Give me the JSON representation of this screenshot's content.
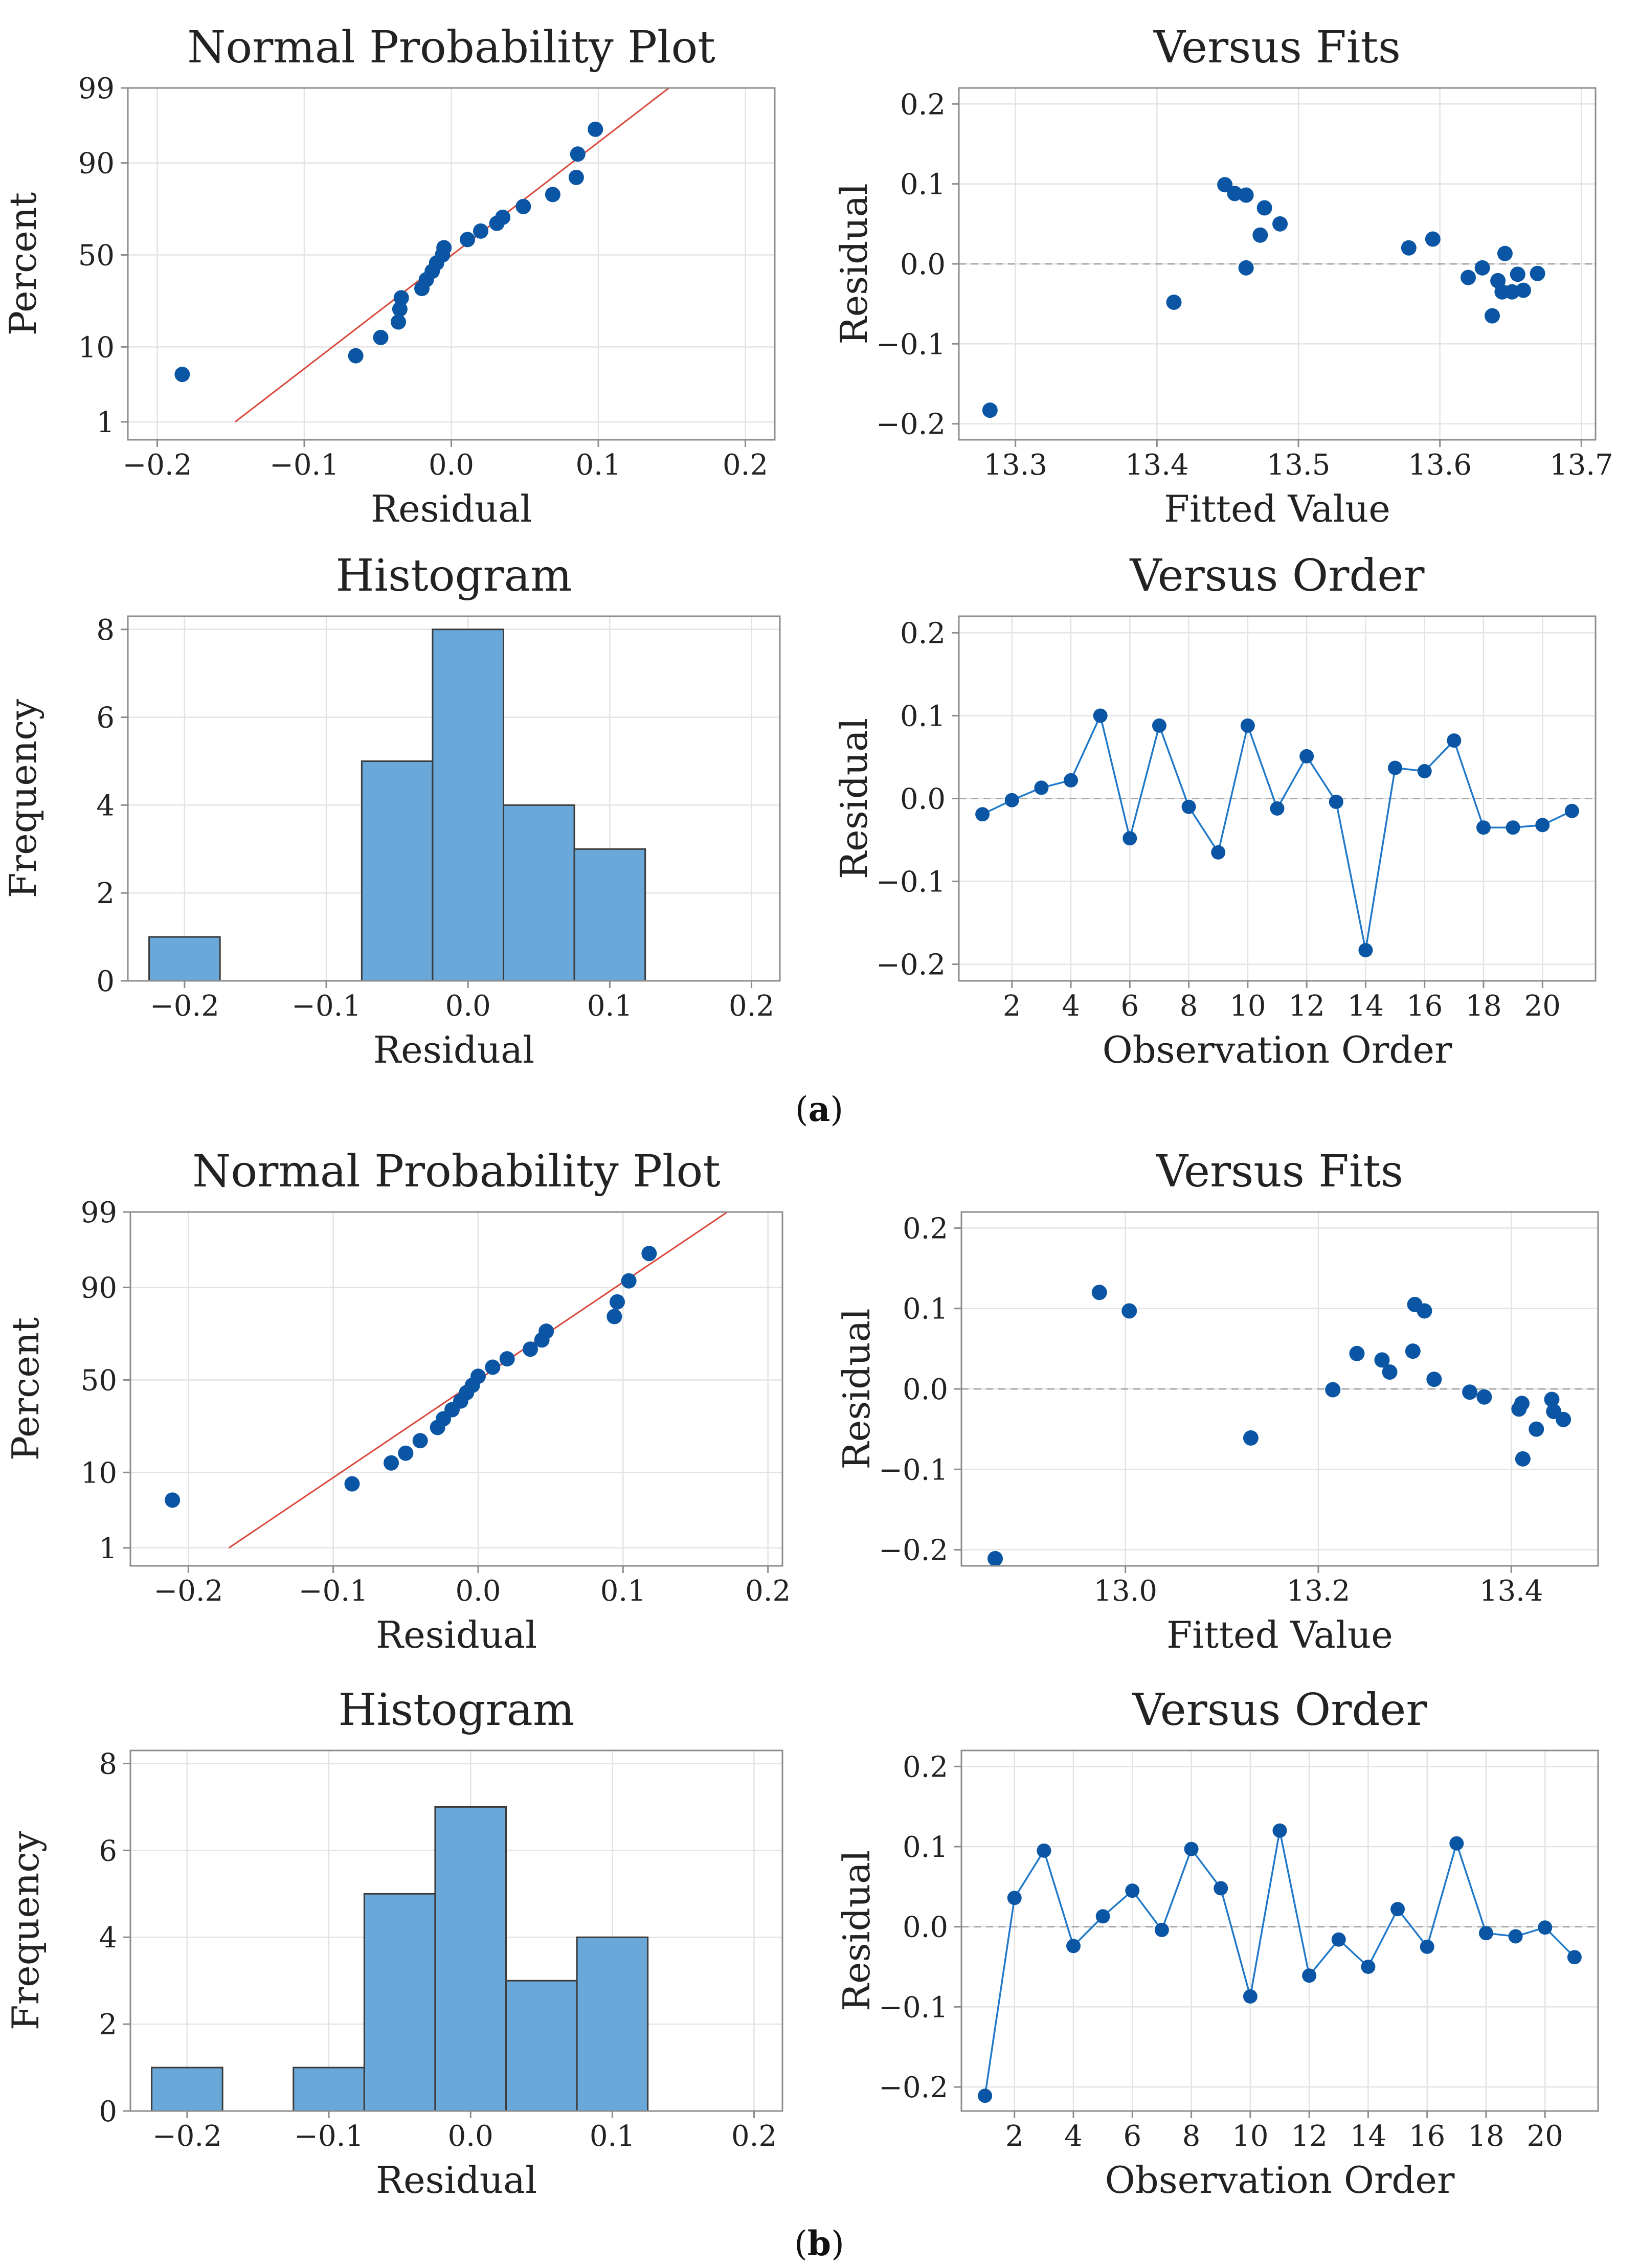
{
  "figure": {
    "captions": [
      {
        "open": "(",
        "letter": "a",
        "close": ")"
      },
      {
        "open": "(",
        "letter": "b",
        "close": ")"
      }
    ]
  },
  "colors": {
    "point": "#0b56a4",
    "bar": "#69a8d9",
    "bar_edge": "#3c3c3c",
    "fit_line": "#d9473a",
    "grid": "#e3e3e3",
    "axis": "#8c8c8c",
    "zero_line": "#a8a8a8"
  },
  "chart_data": [
    {
      "id": "a-npp",
      "type": "scatter",
      "kind": "npp",
      "title": "Normal Probability Plot",
      "xlabel": "Residual",
      "ylabel": "Percent",
      "xlim": [
        -0.22,
        0.22
      ],
      "xticks": [
        -0.2,
        -0.1,
        0.0,
        0.1,
        0.2
      ],
      "xtick_labels": [
        "−0.2",
        "−0.1",
        "0.0",
        "0.1",
        "0.2"
      ],
      "yticks": [
        1,
        10,
        50,
        90,
        99
      ],
      "ytick_labels": [
        "1",
        "10",
        "50",
        "90",
        "99"
      ],
      "fit_line": {
        "x": [
          -0.147,
          0.148
        ],
        "percent": [
          1,
          99
        ]
      },
      "points": [
        {
          "x": -0.183,
          "percent": 4.8
        },
        {
          "x": -0.065,
          "percent": 8.0
        },
        {
          "x": -0.048,
          "percent": 12.5
        },
        {
          "x": -0.036,
          "percent": 17.5
        },
        {
          "x": -0.035,
          "percent": 22.5
        },
        {
          "x": -0.034,
          "percent": 27.5
        },
        {
          "x": -0.02,
          "percent": 32.0
        },
        {
          "x": -0.017,
          "percent": 36.5
        },
        {
          "x": -0.013,
          "percent": 41.0
        },
        {
          "x": -0.01,
          "percent": 45.5
        },
        {
          "x": -0.006,
          "percent": 50.0
        },
        {
          "x": -0.005,
          "percent": 54.0
        },
        {
          "x": 0.011,
          "percent": 58.5
        },
        {
          "x": 0.02,
          "percent": 63.0
        },
        {
          "x": 0.031,
          "percent": 67.0
        },
        {
          "x": 0.035,
          "percent": 70.0
        },
        {
          "x": 0.049,
          "percent": 75.0
        },
        {
          "x": 0.069,
          "percent": 80.0
        },
        {
          "x": 0.085,
          "percent": 86.0
        },
        {
          "x": 0.086,
          "percent": 92.0
        },
        {
          "x": 0.098,
          "percent": 96.0
        }
      ]
    },
    {
      "id": "a-fits",
      "type": "scatter",
      "kind": "fits",
      "title": "Versus Fits",
      "xlabel": "Fitted Value",
      "ylabel": "Residual",
      "xlim": [
        13.26,
        13.71
      ],
      "ylim": [
        -0.22,
        0.22
      ],
      "xticks": [
        13.3,
        13.4,
        13.5,
        13.6,
        13.7
      ],
      "xtick_labels": [
        "13.3",
        "13.4",
        "13.5",
        "13.6",
        "13.7"
      ],
      "yticks": [
        -0.2,
        -0.1,
        0.0,
        0.1,
        0.2
      ],
      "ytick_labels": [
        "−0.2",
        "−0.1",
        "0.0",
        "0.1",
        "0.2"
      ],
      "points": [
        {
          "x": 13.282,
          "y": -0.183
        },
        {
          "x": 13.412,
          "y": -0.048
        },
        {
          "x": 13.448,
          "y": 0.099
        },
        {
          "x": 13.455,
          "y": 0.088
        },
        {
          "x": 13.463,
          "y": 0.086
        },
        {
          "x": 13.463,
          "y": -0.005
        },
        {
          "x": 13.473,
          "y": 0.036
        },
        {
          "x": 13.476,
          "y": 0.07
        },
        {
          "x": 13.487,
          "y": 0.05
        },
        {
          "x": 13.578,
          "y": 0.02
        },
        {
          "x": 13.595,
          "y": 0.031
        },
        {
          "x": 13.62,
          "y": -0.017
        },
        {
          "x": 13.63,
          "y": -0.005
        },
        {
          "x": 13.637,
          "y": -0.065
        },
        {
          "x": 13.641,
          "y": -0.021
        },
        {
          "x": 13.644,
          "y": -0.035
        },
        {
          "x": 13.646,
          "y": 0.013
        },
        {
          "x": 13.651,
          "y": -0.035
        },
        {
          "x": 13.655,
          "y": -0.013
        },
        {
          "x": 13.659,
          "y": -0.033
        },
        {
          "x": 13.669,
          "y": -0.012
        }
      ]
    },
    {
      "id": "a-hist",
      "type": "bar",
      "kind": "hist",
      "title": "Histogram",
      "xlabel": "Residual",
      "ylabel": "Frequency",
      "xlim": [
        -0.24,
        0.22
      ],
      "ylim": [
        0,
        8.3
      ],
      "xticks": [
        -0.2,
        -0.1,
        0.0,
        0.1,
        0.2
      ],
      "xtick_labels": [
        "−0.2",
        "−0.1",
        "0.0",
        "0.1",
        "0.2"
      ],
      "yticks": [
        0,
        2,
        4,
        6,
        8
      ],
      "ytick_labels": [
        "0",
        "2",
        "4",
        "6",
        "8"
      ],
      "bin_edges": [
        -0.225,
        -0.175,
        -0.125,
        -0.075,
        -0.025,
        0.025,
        0.075,
        0.125
      ],
      "counts": [
        1,
        0,
        0,
        5,
        8,
        4,
        3
      ]
    },
    {
      "id": "a-order",
      "type": "line",
      "kind": "order",
      "title": "Versus Order",
      "xlabel": "Observation Order",
      "ylabel": "Residual",
      "xlim": [
        0.2,
        21.8
      ],
      "ylim": [
        -0.22,
        0.22
      ],
      "xticks": [
        2,
        4,
        6,
        8,
        10,
        12,
        14,
        16,
        18,
        20
      ],
      "xtick_labels": [
        "2",
        "4",
        "6",
        "8",
        "10",
        "12",
        "14",
        "16",
        "18",
        "20"
      ],
      "yticks": [
        -0.2,
        -0.1,
        0.0,
        0.1,
        0.2
      ],
      "ytick_labels": [
        "−0.2",
        "−0.1",
        "0.0",
        "0.1",
        "0.2"
      ],
      "x": [
        1,
        2,
        3,
        4,
        5,
        6,
        7,
        8,
        9,
        10,
        11,
        12,
        13,
        14,
        15,
        16,
        17,
        18,
        19,
        20,
        21
      ],
      "values": [
        -0.019,
        -0.002,
        0.013,
        0.022,
        0.1,
        -0.048,
        0.088,
        -0.01,
        -0.065,
        0.088,
        -0.012,
        0.051,
        -0.004,
        -0.183,
        0.037,
        0.033,
        0.07,
        -0.035,
        -0.035,
        -0.032,
        -0.015
      ]
    },
    {
      "id": "b-npp",
      "type": "scatter",
      "kind": "npp",
      "title": "Normal Probability Plot",
      "xlabel": "Residual",
      "ylabel": "Percent",
      "xlim": [
        -0.24,
        0.21
      ],
      "xticks": [
        -0.2,
        -0.1,
        0.0,
        0.1,
        0.2
      ],
      "xtick_labels": [
        "−0.2",
        "−0.1",
        "0.0",
        "0.1",
        "0.2"
      ],
      "yticks": [
        1,
        10,
        50,
        90,
        99
      ],
      "ytick_labels": [
        "1",
        "10",
        "50",
        "90",
        "99"
      ],
      "fit_line": {
        "x": [
          -0.172,
          0.172
        ],
        "percent": [
          1,
          99
        ]
      },
      "points": [
        {
          "x": -0.211,
          "percent": 4.8
        },
        {
          "x": -0.087,
          "percent": 7.5
        },
        {
          "x": -0.06,
          "percent": 12.5
        },
        {
          "x": -0.05,
          "percent": 15.5
        },
        {
          "x": -0.04,
          "percent": 20.0
        },
        {
          "x": -0.028,
          "percent": 25.5
        },
        {
          "x": -0.024,
          "percent": 29.5
        },
        {
          "x": -0.018,
          "percent": 34.0
        },
        {
          "x": -0.012,
          "percent": 38.5
        },
        {
          "x": -0.008,
          "percent": 43.0
        },
        {
          "x": -0.004,
          "percent": 47.0
        },
        {
          "x": 0.0,
          "percent": 52.0
        },
        {
          "x": 0.01,
          "percent": 57.0
        },
        {
          "x": 0.02,
          "percent": 61.5
        },
        {
          "x": 0.036,
          "percent": 66.5
        },
        {
          "x": 0.044,
          "percent": 71.0
        },
        {
          "x": 0.047,
          "percent": 75.0
        },
        {
          "x": 0.094,
          "percent": 81.0
        },
        {
          "x": 0.096,
          "percent": 86.0
        },
        {
          "x": 0.104,
          "percent": 91.5
        },
        {
          "x": 0.118,
          "percent": 96.0
        }
      ]
    },
    {
      "id": "b-fits",
      "type": "scatter",
      "kind": "fits",
      "title": "Versus Fits",
      "xlabel": "Fitted Value",
      "ylabel": "Residual",
      "xlim": [
        12.83,
        13.49
      ],
      "ylim": [
        -0.22,
        0.22
      ],
      "xticks": [
        13.0,
        13.2,
        13.4
      ],
      "xtick_labels": [
        "13.0",
        "13.2",
        "13.4"
      ],
      "yticks": [
        -0.2,
        -0.1,
        0.0,
        0.1,
        0.2
      ],
      "ytick_labels": [
        "−0.2",
        "−0.1",
        "0.0",
        "0.1",
        "0.2"
      ],
      "points": [
        {
          "x": 12.865,
          "y": -0.211
        },
        {
          "x": 12.973,
          "y": 0.12
        },
        {
          "x": 13.004,
          "y": 0.097
        },
        {
          "x": 13.13,
          "y": -0.061
        },
        {
          "x": 13.215,
          "y": -0.001
        },
        {
          "x": 13.24,
          "y": 0.044
        },
        {
          "x": 13.266,
          "y": 0.036
        },
        {
          "x": 13.274,
          "y": 0.021
        },
        {
          "x": 13.298,
          "y": 0.047
        },
        {
          "x": 13.3,
          "y": 0.105
        },
        {
          "x": 13.31,
          "y": 0.097
        },
        {
          "x": 13.32,
          "y": 0.012
        },
        {
          "x": 13.357,
          "y": -0.004
        },
        {
          "x": 13.372,
          "y": -0.01
        },
        {
          "x": 13.408,
          "y": -0.025
        },
        {
          "x": 13.411,
          "y": -0.018
        },
        {
          "x": 13.412,
          "y": -0.087
        },
        {
          "x": 13.426,
          "y": -0.05
        },
        {
          "x": 13.442,
          "y": -0.013
        },
        {
          "x": 13.444,
          "y": -0.028
        },
        {
          "x": 13.454,
          "y": -0.038
        }
      ]
    },
    {
      "id": "b-hist",
      "type": "bar",
      "kind": "hist",
      "title": "Histogram",
      "xlabel": "Residual",
      "ylabel": "Frequency",
      "xlim": [
        -0.24,
        0.22
      ],
      "ylim": [
        0,
        8.3
      ],
      "xticks": [
        -0.2,
        -0.1,
        0.0,
        0.1,
        0.2
      ],
      "xtick_labels": [
        "−0.2",
        "−0.1",
        "0.0",
        "0.1",
        "0.2"
      ],
      "yticks": [
        0,
        2,
        4,
        6,
        8
      ],
      "ytick_labels": [
        "0",
        "2",
        "4",
        "6",
        "8"
      ],
      "bin_edges": [
        -0.225,
        -0.175,
        -0.125,
        -0.075,
        -0.025,
        0.025,
        0.075,
        0.125
      ],
      "counts": [
        1,
        0,
        1,
        5,
        7,
        3,
        4
      ]
    },
    {
      "id": "b-order",
      "type": "line",
      "kind": "order",
      "title": "Versus Order",
      "xlabel": "Observation Order",
      "ylabel": "Residual",
      "xlim": [
        0.2,
        21.8
      ],
      "ylim": [
        -0.23,
        0.22
      ],
      "xticks": [
        2,
        4,
        6,
        8,
        10,
        12,
        14,
        16,
        18,
        20
      ],
      "xtick_labels": [
        "2",
        "4",
        "6",
        "8",
        "10",
        "12",
        "14",
        "16",
        "18",
        "20"
      ],
      "yticks": [
        -0.2,
        -0.1,
        0.0,
        0.1,
        0.2
      ],
      "ytick_labels": [
        "−0.2",
        "−0.1",
        "0.0",
        "0.1",
        "0.2"
      ],
      "x": [
        1,
        2,
        3,
        4,
        5,
        6,
        7,
        8,
        9,
        10,
        11,
        12,
        13,
        14,
        15,
        16,
        17,
        18,
        19,
        20,
        21
      ],
      "values": [
        -0.211,
        0.036,
        0.095,
        -0.024,
        0.013,
        0.045,
        -0.004,
        0.097,
        0.048,
        -0.087,
        0.12,
        -0.061,
        -0.016,
        -0.05,
        0.022,
        -0.025,
        0.104,
        -0.008,
        -0.012,
        -0.001,
        -0.038
      ]
    }
  ]
}
